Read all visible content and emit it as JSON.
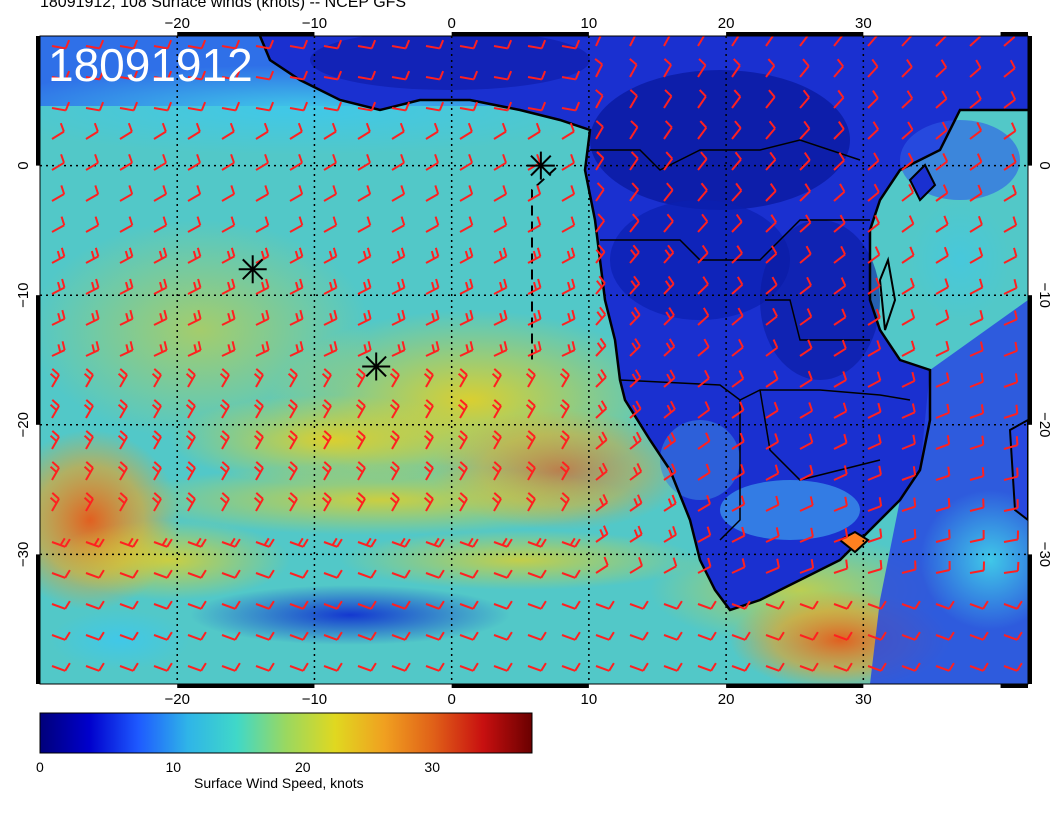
{
  "header": {
    "title": "18091912, 108 Surface winds (knots) -- NCEP GFS",
    "stamp": "18091912"
  },
  "map": {
    "lon_range": [
      -30,
      42
    ],
    "lat_range": [
      -40,
      10
    ],
    "lon_ticks": [
      {
        "value": -20,
        "label": "−20"
      },
      {
        "value": -10,
        "label": "−10"
      },
      {
        "value": 0,
        "label": "0"
      },
      {
        "value": 10,
        "label": "10"
      },
      {
        "value": 20,
        "label": "20"
      },
      {
        "value": 30,
        "label": "30"
      }
    ],
    "lat_ticks": [
      {
        "value": 0,
        "label": "0"
      },
      {
        "value": -10,
        "label": "−10"
      },
      {
        "value": -20,
        "label": "−20"
      },
      {
        "value": -30,
        "label": "−30"
      }
    ],
    "barb_color": "#ff2020",
    "markers": [
      {
        "name": "marker-equator",
        "lon": 6.5,
        "lat": 0
      },
      {
        "name": "marker-north",
        "lon": -14.5,
        "lat": -8
      },
      {
        "name": "marker-south",
        "lon": -5.5,
        "lat": -15.5
      }
    ]
  },
  "colorbar": {
    "caption": "Surface Wind Speed, knots",
    "ticks": [
      {
        "value": 0,
        "label": "0"
      },
      {
        "value": 10,
        "label": "10"
      },
      {
        "value": 20,
        "label": "20"
      },
      {
        "value": 30,
        "label": "30"
      }
    ],
    "max": 38,
    "colors": [
      "#00007a",
      "#0000cc",
      "#1e5aff",
      "#2fb4e8",
      "#40d8c8",
      "#9ad860",
      "#e0d820",
      "#f0a020",
      "#e06018",
      "#c81010",
      "#6a0000"
    ]
  }
}
